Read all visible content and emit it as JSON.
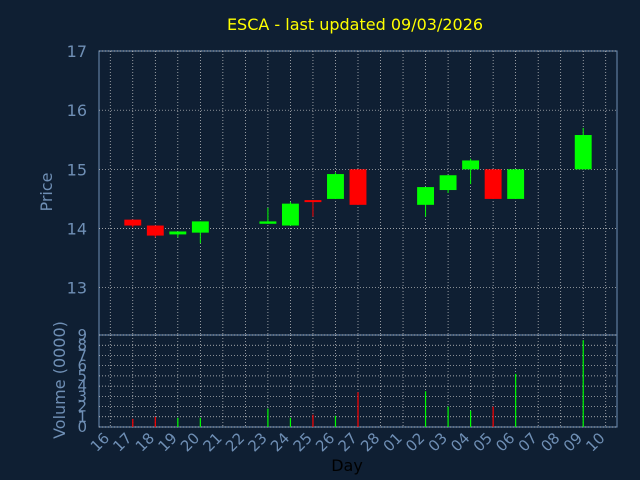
{
  "chart_data": {
    "type": "candlestick",
    "title": "ESCA - last updated 09/03/2026",
    "price_panel": {
      "ylabel": "Price",
      "ylim": [
        12.2,
        17
      ],
      "yticks": [
        "13",
        "14",
        "15",
        "16",
        "17"
      ],
      "grid": true
    },
    "volume_panel": {
      "ylabel": "Volume (0000)",
      "ylim": [
        0,
        9
      ],
      "yticks": [
        "0",
        "1",
        "2",
        "3",
        "4",
        "5",
        "6",
        "7",
        "8",
        "9"
      ],
      "grid": true
    },
    "xlabel": "Day",
    "days": [
      "16",
      "17",
      "18",
      "19",
      "20",
      "21",
      "22",
      "23",
      "24",
      "25",
      "26",
      "27",
      "28",
      "01",
      "02",
      "03",
      "04",
      "05",
      "06",
      "07",
      "08",
      "09",
      "10"
    ],
    "candles": [
      {
        "day": "17",
        "open": 14.15,
        "high": 14.15,
        "low": 14.02,
        "close": 14.05,
        "volume": 0.8
      },
      {
        "day": "18",
        "open": 14.05,
        "high": 14.05,
        "low": 13.85,
        "close": 13.88,
        "volume": 1.0
      },
      {
        "day": "19",
        "open": 13.9,
        "high": 13.95,
        "low": 13.85,
        "close": 13.95,
        "volume": 0.9
      },
      {
        "day": "20",
        "open": 13.93,
        "high": 14.12,
        "low": 13.75,
        "close": 14.12,
        "volume": 0.9
      },
      {
        "day": "23",
        "open": 14.08,
        "high": 14.35,
        "low": 14.08,
        "close": 14.12,
        "volume": 1.8
      },
      {
        "day": "24",
        "open": 14.05,
        "high": 14.45,
        "low": 14.05,
        "close": 14.42,
        "volume": 0.9
      },
      {
        "day": "25",
        "open": 14.48,
        "high": 14.48,
        "low": 14.2,
        "close": 14.45,
        "volume": 1.2
      },
      {
        "day": "26",
        "open": 14.5,
        "high": 14.95,
        "low": 14.5,
        "close": 14.92,
        "volume": 1.1
      },
      {
        "day": "27",
        "open": 15.0,
        "high": 15.0,
        "low": 14.4,
        "close": 14.4,
        "volume": 3.4
      },
      {
        "day": "02",
        "open": 14.4,
        "high": 14.7,
        "low": 14.2,
        "close": 14.7,
        "volume": 3.5
      },
      {
        "day": "03",
        "open": 14.65,
        "high": 14.9,
        "low": 14.6,
        "close": 14.9,
        "volume": 2.0
      },
      {
        "day": "04",
        "open": 15.0,
        "high": 15.18,
        "low": 14.75,
        "close": 15.15,
        "volume": 1.6
      },
      {
        "day": "05",
        "open": 15.0,
        "high": 15.0,
        "low": 14.5,
        "close": 14.5,
        "volume": 2.0
      },
      {
        "day": "06",
        "open": 14.5,
        "high": 15.0,
        "low": 14.5,
        "close": 15.0,
        "volume": 5.2
      },
      {
        "day": "09",
        "open": 15.0,
        "high": 15.7,
        "low": 15.0,
        "close": 15.58,
        "volume": 8.5
      }
    ],
    "colors": {
      "background": "#0f1f33",
      "up": "#00ff00",
      "down": "#ff0000",
      "grid": "#cfcfcf",
      "axis_text": "#6f8fb5",
      "title": "#ffff00",
      "day_labels": "#000000",
      "panel_border": "#6f8fb5"
    }
  }
}
